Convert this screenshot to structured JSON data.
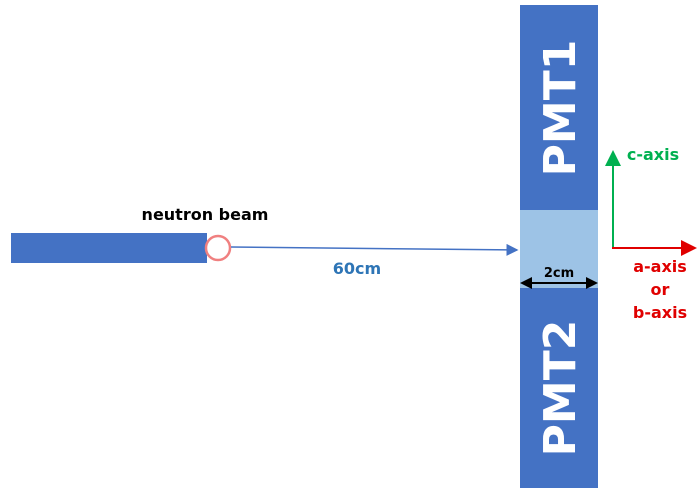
{
  "beam": {
    "label": "neutron beam"
  },
  "distance": {
    "label": "60cm"
  },
  "detector": {
    "pmt1": "PMT1",
    "pmt2": "PMT2",
    "width_label": "2cm"
  },
  "axes": {
    "vertical": "c-axis",
    "horizontal": [
      "a-axis",
      "or",
      "b-axis"
    ]
  }
}
